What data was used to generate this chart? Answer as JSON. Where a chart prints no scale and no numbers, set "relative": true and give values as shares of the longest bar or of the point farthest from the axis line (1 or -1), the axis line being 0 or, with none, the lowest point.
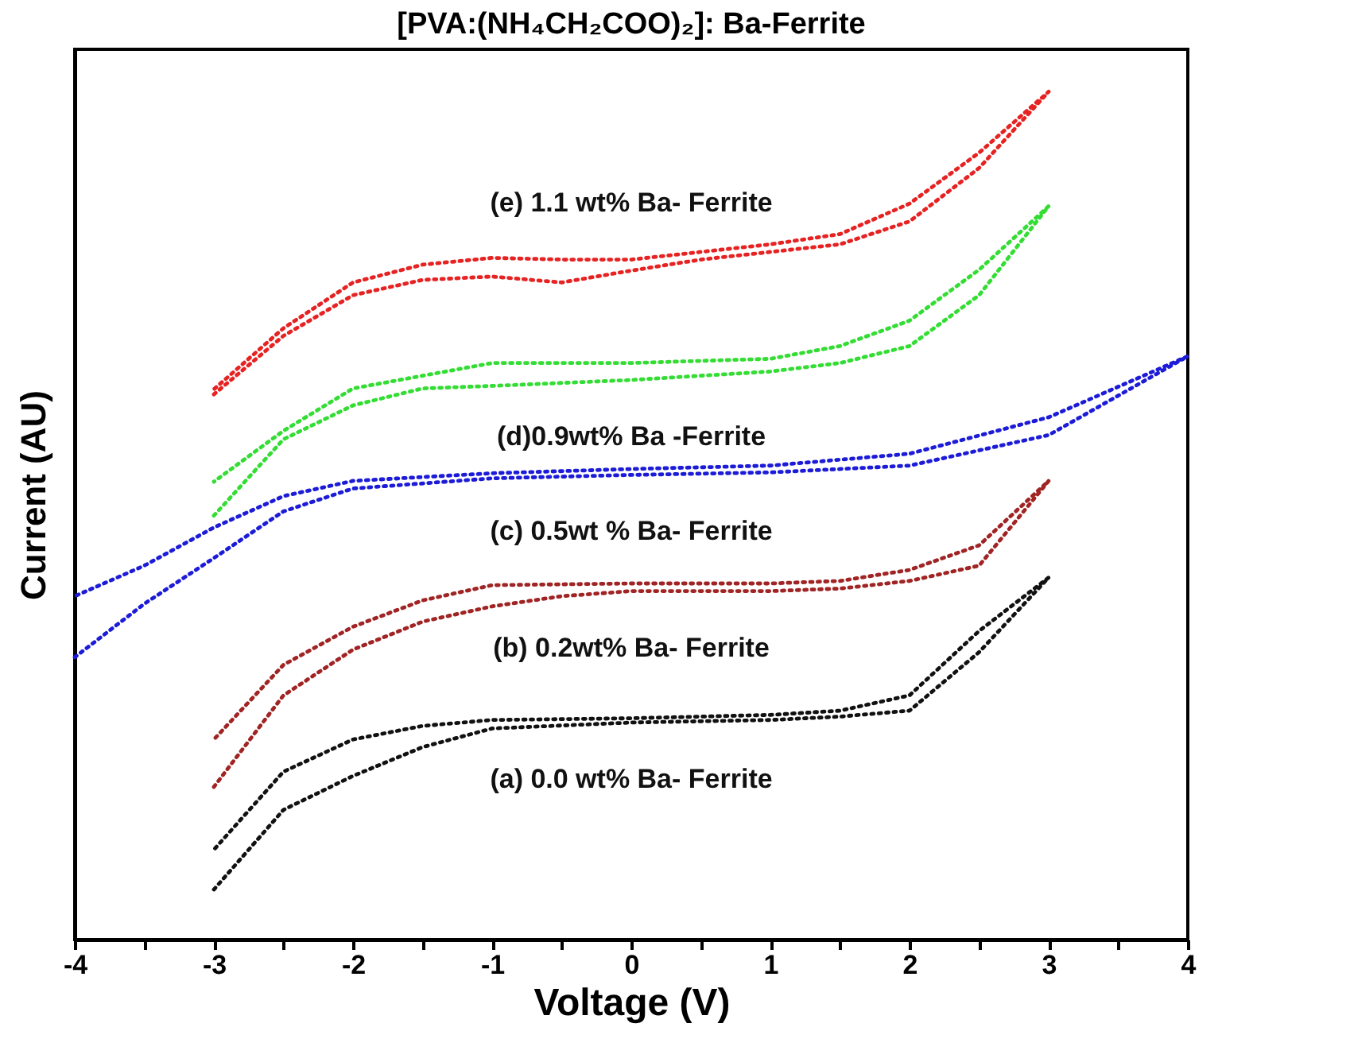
{
  "chart_data": {
    "type": "line",
    "title": "[PVA:(NH₄CH₂COO)₂]: Ba-Ferrite",
    "xlabel": "Voltage (V)",
    "ylabel": "Current (AU)",
    "relative": true,
    "line_style": "dotted",
    "grid": false,
    "xlim": [
      -4,
      4
    ],
    "xticks": [
      -4,
      {
        "value": -3.5,
        "label": null
      },
      -3,
      {
        "value": -2.5,
        "label": null
      },
      -2,
      {
        "value": -1.5,
        "label": null
      },
      -1,
      {
        "value": -0.5,
        "label": null
      },
      0,
      {
        "value": 0.5,
        "label": null
      },
      1,
      {
        "value": 1.5,
        "label": null
      },
      2,
      {
        "value": 2.5,
        "label": null
      },
      3,
      {
        "value": 3.5,
        "label": null
      },
      4
    ],
    "series": [
      {
        "name": "(a) 0.0 wt% Ba- Ferrite",
        "color": "#111111",
        "x": [
          -3,
          -2.5,
          -2,
          -1.5,
          -1,
          0,
          1,
          1.5,
          2,
          2.5,
          3,
          2.5,
          2,
          1.5,
          1,
          0,
          -1,
          -1.5,
          -2,
          -2.5,
          -3
        ],
        "values": [
          0.059,
          0.153,
          0.193,
          0.227,
          0.249,
          0.256,
          0.259,
          0.263,
          0.27,
          0.339,
          0.427,
          0.364,
          0.288,
          0.27,
          0.265,
          0.261,
          0.259,
          0.252,
          0.236,
          0.198,
          0.106
        ]
      },
      {
        "name": "(b) 0.2wt% Ba- Ferrite",
        "color": "#a02424",
        "x": [
          -3,
          -2.5,
          -2,
          -1.5,
          -1,
          -0.5,
          0,
          1,
          1.5,
          2,
          2.5,
          3,
          2.5,
          2,
          1.5,
          1,
          0,
          -1,
          -1.5,
          -2,
          -2.5,
          -3
        ],
        "values": [
          0.18,
          0.288,
          0.342,
          0.375,
          0.393,
          0.405,
          0.411,
          0.411,
          0.414,
          0.423,
          0.441,
          0.541,
          0.465,
          0.436,
          0.423,
          0.42,
          0.42,
          0.418,
          0.4,
          0.369,
          0.324,
          0.236
        ]
      },
      {
        "name": "(c) 0.5wt % Ba- Ferrite",
        "color": "#1c1cd8",
        "x": [
          -4,
          -3.5,
          -3,
          -2.5,
          -2,
          -1,
          0,
          1,
          2,
          3,
          4,
          3,
          2,
          1,
          0,
          -1,
          -2,
          -2.5,
          -3,
          -3.5,
          -4
        ],
        "values": [
          0.333,
          0.396,
          0.45,
          0.505,
          0.532,
          0.544,
          0.548,
          0.551,
          0.559,
          0.595,
          0.688,
          0.616,
          0.573,
          0.559,
          0.555,
          0.55,
          0.541,
          0.523,
          0.486,
          0.441,
          0.405
        ]
      },
      {
        "name": "(d)0.9wt% Ba -Ferrite",
        "color": "#33dd33",
        "x": [
          -3,
          -2.5,
          -2,
          -1.5,
          -1,
          0,
          1,
          1.5,
          2,
          2.5,
          3,
          2.5,
          2,
          1.5,
          1,
          0,
          -1,
          -2,
          -2.5,
          -3
        ],
        "values": [
          0.5,
          0.59,
          0.63,
          0.65,
          0.653,
          0.66,
          0.67,
          0.68,
          0.7,
          0.76,
          0.865,
          0.79,
          0.73,
          0.7,
          0.685,
          0.68,
          0.68,
          0.65,
          0.6,
          0.54
        ]
      },
      {
        "name": "(e) 1.1 wt% Ba- Ferrite",
        "color": "#e62222",
        "x": [
          -3,
          -2.5,
          -2,
          -1.5,
          -1,
          -0.5,
          0,
          0.5,
          1,
          1.5,
          2,
          2.5,
          3,
          2.5,
          2,
          1.5,
          1,
          0.5,
          0,
          -0.5,
          -1,
          -1.5,
          -2,
          -2.5,
          -3
        ],
        "values": [
          0.643,
          0.712,
          0.76,
          0.778,
          0.782,
          0.775,
          0.789,
          0.802,
          0.811,
          0.82,
          0.847,
          0.91,
          1,
          0.928,
          0.868,
          0.832,
          0.82,
          0.811,
          0.802,
          0.802,
          0.804,
          0.796,
          0.775,
          0.721,
          0.649
        ]
      }
    ]
  }
}
